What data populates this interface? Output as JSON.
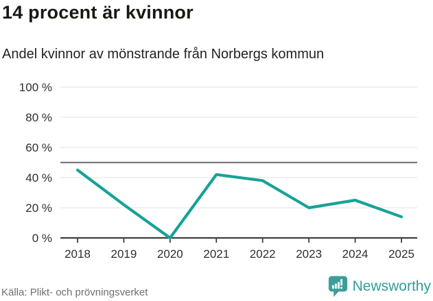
{
  "header": {
    "title": "14 procent är kvinnor",
    "subtitle": "Andel kvinnor av mönstrande från Norbergs kommun"
  },
  "chart_data": {
    "type": "line",
    "title": "14 procent är kvinnor",
    "subtitle": "Andel kvinnor av mönstrande från Norbergs kommun",
    "x": [
      "2018",
      "2019",
      "2020",
      "2021",
      "2022",
      "2023",
      "2024",
      "2025"
    ],
    "series": [
      {
        "name": "Andel kvinnor av mönstrande",
        "values": [
          45,
          22,
          0,
          42,
          38,
          20,
          25,
          14
        ]
      }
    ],
    "xlabel": "",
    "ylabel": "",
    "ylim": [
      0,
      100
    ],
    "yticks": [
      0,
      20,
      40,
      60,
      80,
      100
    ],
    "ytick_suffix": " %",
    "grid": true,
    "legend": "none",
    "reference_line": {
      "value": 50,
      "color": "#7b7b7b"
    },
    "colors": {
      "line": "#17a296",
      "grid": "#e7e7e7",
      "axis": "#3f3f3f",
      "tick_label": "#2e2e2e"
    }
  },
  "footer": {
    "source": "Källa: Plikt- och prövningsverket",
    "brand": "Newsworthy",
    "logo_icon": "bar-chart-speech-bubble-icon",
    "logo_color": "#3c9e9b",
    "brand_color": "#2f9d99"
  }
}
